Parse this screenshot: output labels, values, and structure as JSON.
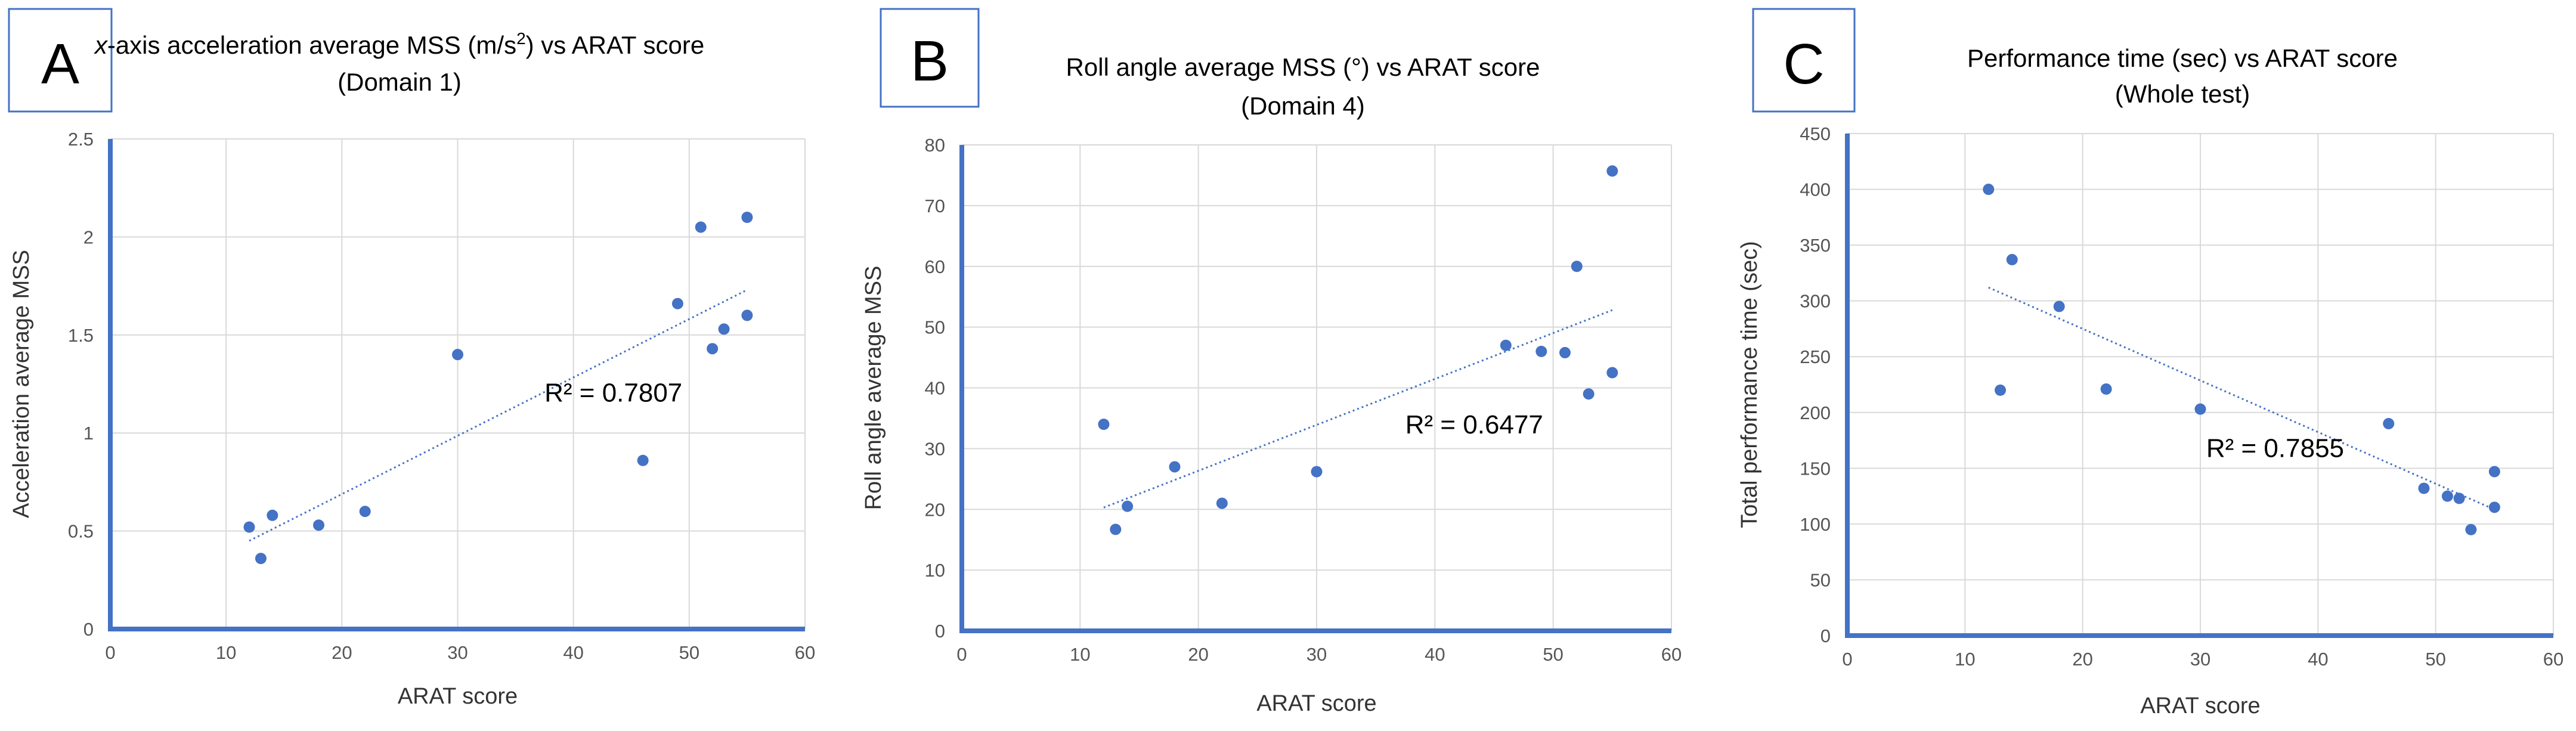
{
  "figure": {
    "panels": [
      "A",
      "B",
      "C"
    ]
  },
  "colors": {
    "point": "#4472C4",
    "axis": "#4472C4",
    "grid": "#D9D9D9",
    "trend": "#4472C4",
    "box": "#4472C4"
  },
  "chart_data": [
    {
      "type": "scatter",
      "panel": "A",
      "title_prefix": "x",
      "title_line1_rest": "-axis acceleration average MSS (m/s",
      "title_sup": "2",
      "title_line1_end": ") vs ARAT score",
      "title_line2": "(Domain 1)",
      "xlabel": "ARAT score",
      "ylabel": "Acceleration average MSS",
      "xlim": [
        0,
        60
      ],
      "ylim": [
        0,
        2.5
      ],
      "xticks": [
        0,
        10,
        20,
        30,
        40,
        50,
        60
      ],
      "yticks": [
        0,
        0.5,
        1,
        1.5,
        2,
        2.5
      ],
      "ytick_labels": [
        "0",
        "0.5",
        "1",
        "1.5",
        "2",
        "2.5"
      ],
      "grid": true,
      "points": [
        [
          12,
          0.52
        ],
        [
          13,
          0.36
        ],
        [
          14,
          0.58
        ],
        [
          18,
          0.53
        ],
        [
          22,
          0.6
        ],
        [
          30,
          1.4
        ],
        [
          46,
          0.86
        ],
        [
          49,
          1.66
        ],
        [
          51,
          2.05
        ],
        [
          52,
          1.43
        ],
        [
          53,
          1.53
        ],
        [
          55,
          2.1
        ],
        [
          55,
          1.6
        ]
      ],
      "trendline": {
        "x": [
          12,
          55
        ],
        "y": [
          0.45,
          1.73
        ]
      },
      "r2_label": "R² = 0.7807",
      "r2_anchor": [
        37.5,
        1.16
      ]
    },
    {
      "type": "scatter",
      "panel": "B",
      "title_line1": "Roll angle average MSS (°) vs ARAT score",
      "title_line2": "(Domain 4)",
      "xlabel": "ARAT score",
      "ylabel": "Roll angle average MSS",
      "xlim": [
        0,
        60
      ],
      "ylim": [
        0,
        80
      ],
      "xticks": [
        0,
        10,
        20,
        30,
        40,
        50,
        60
      ],
      "yticks": [
        0,
        10,
        20,
        30,
        40,
        50,
        60,
        70,
        80
      ],
      "ytick_labels": [
        "0",
        "10",
        "20",
        "30",
        "40",
        "50",
        "60",
        "70",
        "80"
      ],
      "grid": true,
      "points": [
        [
          12,
          34
        ],
        [
          13,
          16.7
        ],
        [
          14,
          20.5
        ],
        [
          18,
          27
        ],
        [
          22,
          21
        ],
        [
          30,
          26.2
        ],
        [
          46,
          47
        ],
        [
          49,
          46
        ],
        [
          51,
          45.8
        ],
        [
          52,
          60
        ],
        [
          53,
          39
        ],
        [
          55,
          42.5
        ],
        [
          55,
          75.7
        ]
      ],
      "trendline": {
        "x": [
          12,
          55
        ],
        "y": [
          20.3,
          52.8
        ]
      },
      "r2_label": "R² = 0.6477",
      "r2_anchor": [
        37.5,
        32.5
      ]
    },
    {
      "type": "scatter",
      "panel": "C",
      "title_line1": "Performance time (sec) vs ARAT score",
      "title_line2": "(Whole test)",
      "xlabel": "ARAT score",
      "ylabel": "Total performance time (sec)",
      "xlim": [
        0,
        60
      ],
      "ylim": [
        0,
        450
      ],
      "xticks": [
        0,
        10,
        20,
        30,
        40,
        50,
        60
      ],
      "yticks": [
        0,
        50,
        100,
        150,
        200,
        250,
        300,
        350,
        400,
        450
      ],
      "ytick_labels": [
        "0",
        "50",
        "100",
        "150",
        "200",
        "250",
        "300",
        "350",
        "400",
        "450"
      ],
      "grid": true,
      "points": [
        [
          12,
          400
        ],
        [
          13,
          220
        ],
        [
          14,
          337
        ],
        [
          18,
          295
        ],
        [
          22,
          221
        ],
        [
          30,
          203
        ],
        [
          46,
          190
        ],
        [
          49,
          132
        ],
        [
          51,
          125
        ],
        [
          52,
          123
        ],
        [
          53,
          95
        ],
        [
          55,
          147
        ],
        [
          55,
          115
        ]
      ],
      "trendline": {
        "x": [
          12,
          55
        ],
        "y": [
          312,
          113
        ]
      },
      "r2_label": "R² = 0.7855",
      "r2_anchor": [
        30.5,
        160
      ]
    }
  ]
}
